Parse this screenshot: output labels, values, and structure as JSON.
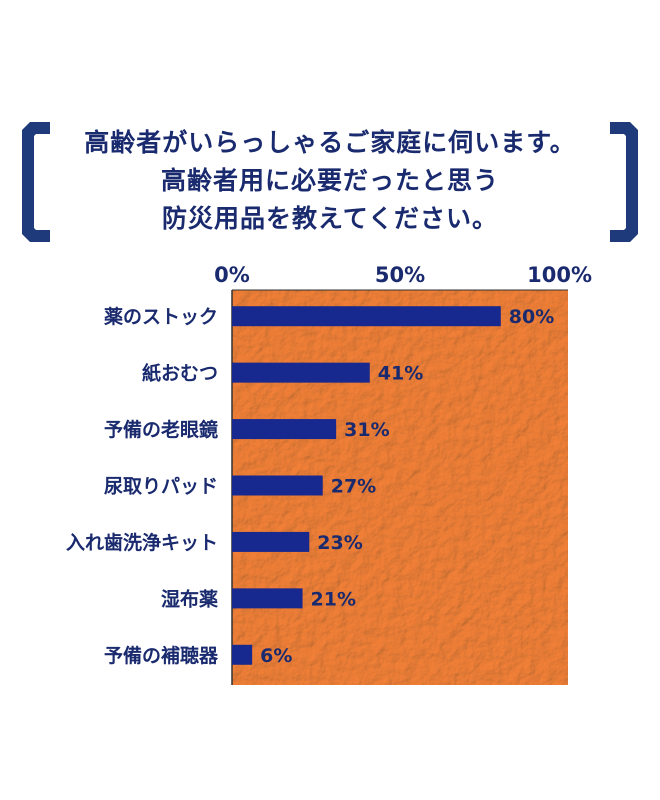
{
  "title_lines": [
    "高齢者がいらっしゃるご家庭に伺います。",
    "高齢者用に必要だったと思う",
    "防災用品を教えてください。"
  ],
  "colors": {
    "bar": "#17288e",
    "plot_bg": "#f7a95e",
    "text": "#1a2a6e",
    "bracket": "#1f3a7a"
  },
  "chart_data": {
    "type": "bar",
    "orientation": "horizontal",
    "title": "高齢者がいらっしゃるご家庭に伺います。高齢者用に必要だったと思う防災用品を教えてください。",
    "categories": [
      "薬のストック",
      "紙おむつ",
      "予備の老眼鏡",
      "尿取りパッド",
      "入れ歯洗浄キット",
      "湿布薬",
      "予備の補聴器"
    ],
    "values": [
      80,
      41,
      31,
      27,
      23,
      21,
      6
    ],
    "value_labels": [
      "80%",
      "41%",
      "31%",
      "27%",
      "23%",
      "21%",
      "6%"
    ],
    "xlim": [
      0,
      100
    ],
    "xticks": [
      "0%",
      "50%",
      "100%"
    ],
    "xtick_values": [
      0,
      50,
      100
    ],
    "axis_position": "top"
  }
}
